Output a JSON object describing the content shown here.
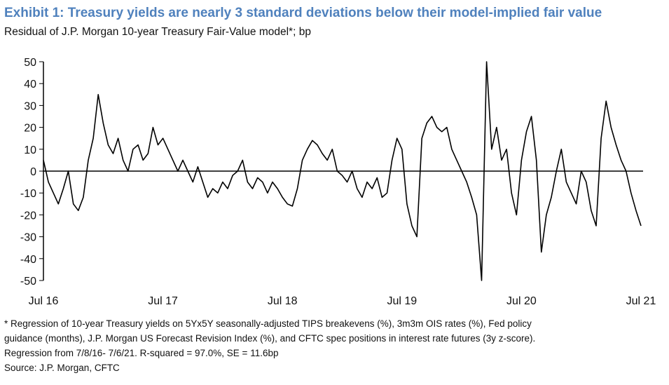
{
  "chart_data": {
    "type": "line",
    "title": "Exhibit 1: Treasury yields are nearly 3 standard deviations below their model-implied fair value",
    "subtitle": "Residual of J.P. Morgan 10-year Treasury Fair-Value model*; bp",
    "notes": [
      "* Regression of 10-year Treasury yields on 5Yx5Y seasonally-adjusted TIPS breakevens (%), 3m3m OIS rates (%), Fed policy",
      "guidance (months), J.P. Morgan US Forecast Revision Index (%), and CFTC spec positions in interest rate futures (3y z-score).",
      "Regression from 7/8/16- 7/6/21. R-squared = 97.0%, SE = 11.6bp",
      "Source: J.P. Morgan, CFTC"
    ],
    "categories": [
      "Jul 16",
      null,
      null,
      null,
      null,
      null,
      null,
      null,
      null,
      null,
      null,
      null,
      null,
      null,
      null,
      null,
      null,
      null,
      null,
      null,
      null,
      null,
      null,
      null,
      "Jul 17",
      null,
      null,
      null,
      null,
      null,
      null,
      null,
      null,
      null,
      null,
      null,
      null,
      null,
      null,
      null,
      null,
      null,
      null,
      null,
      null,
      null,
      null,
      null,
      "Jul 18",
      null,
      null,
      null,
      null,
      null,
      null,
      null,
      null,
      null,
      null,
      null,
      null,
      null,
      null,
      null,
      null,
      null,
      null,
      null,
      null,
      null,
      null,
      null,
      "Jul 19",
      null,
      null,
      null,
      null,
      null,
      null,
      null,
      null,
      null,
      null,
      null,
      null,
      null,
      null,
      null,
      null,
      null,
      null,
      null,
      null,
      null,
      null,
      null,
      "Jul 20",
      null,
      null,
      null,
      null,
      null,
      null,
      null,
      null,
      null,
      null,
      null,
      null,
      null,
      null,
      null,
      null,
      null,
      null,
      null,
      null,
      null,
      null,
      null,
      "Jul 21"
    ],
    "series": [
      {
        "name": "Residual",
        "color": "#000000",
        "values": [
          5,
          -5,
          -10,
          -15,
          -8,
          0,
          -15,
          -18,
          -12,
          5,
          15,
          35,
          22,
          12,
          8,
          15,
          5,
          0,
          10,
          12,
          5,
          8,
          20,
          12,
          15,
          10,
          5,
          0,
          5,
          0,
          -5,
          2,
          -5,
          -12,
          -8,
          -10,
          -5,
          -8,
          -2,
          0,
          5,
          -5,
          -8,
          -3,
          -5,
          -10,
          -5,
          -8,
          -12,
          -15,
          -16,
          -8,
          5,
          10,
          14,
          12,
          8,
          5,
          10,
          0,
          -2,
          -5,
          0,
          -8,
          -12,
          -5,
          -8,
          -3,
          -12,
          -10,
          5,
          15,
          10,
          -15,
          -25,
          -30,
          15,
          22,
          25,
          20,
          18,
          20,
          10,
          5,
          0,
          -5,
          -12,
          -20,
          -50,
          50,
          10,
          20,
          5,
          10,
          -10,
          -20,
          5,
          18,
          25,
          5,
          -37,
          -20,
          -12,
          0,
          10,
          -5,
          -10,
          -15,
          0,
          -5,
          -18,
          -25,
          15,
          32,
          20,
          12,
          5,
          0,
          -10,
          -18,
          -25
        ]
      }
    ],
    "ylim": [
      -50,
      50
    ],
    "yticks": [
      50,
      40,
      30,
      20,
      10,
      0,
      -10,
      -20,
      -30,
      -40,
      -50
    ]
  }
}
